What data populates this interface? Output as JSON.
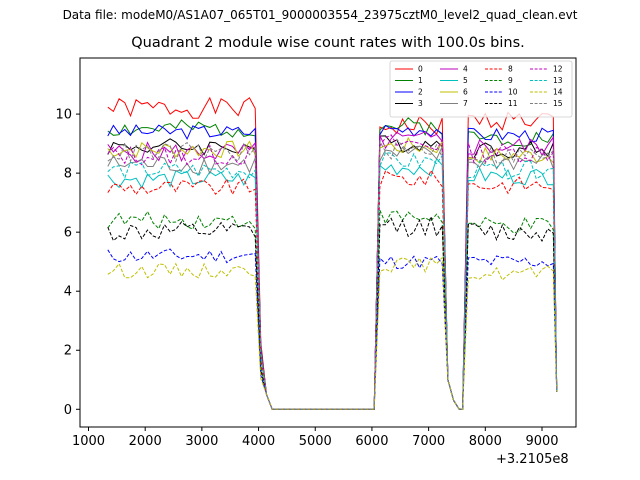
{
  "header": {
    "suptitle": "Data file: modeM0/AS1A07_065T01_9000003554_23975cztM0_level2_quad_clean.evt"
  },
  "chart_data": {
    "type": "line",
    "title": "Quadrant 2 module wise count rates with 100.0s bins.",
    "xlabel": "",
    "ylabel": "",
    "x_offset_label": "+3.2105e8",
    "xlim": [
      850,
      9600
    ],
    "ylim": [
      -0.6,
      11.9
    ],
    "x_ticks": [
      1000,
      2000,
      3000,
      4000,
      5000,
      6000,
      7000,
      8000,
      9000
    ],
    "y_ticks": [
      0,
      2,
      4,
      6,
      8,
      10
    ],
    "grid": false,
    "legend": {
      "placement": "top-right",
      "columns": 4
    },
    "segments": [
      {
        "x_start": 1340,
        "x_end": 3940,
        "step": 100
      },
      {
        "x_start": 6140,
        "x_end": 7240,
        "step": 100
      },
      {
        "x_start": 7700,
        "x_end": 9240,
        "step": 100
      }
    ],
    "gap_points": [
      [
        4040,
        2.0
      ],
      [
        4140,
        0.5
      ],
      [
        4240,
        0.0
      ],
      [
        6040,
        0.0
      ],
      [
        7340,
        1.0
      ],
      [
        7440,
        0.3
      ],
      [
        7540,
        0.0
      ],
      [
        7600,
        0.0
      ]
    ],
    "final_point": [
      9260,
      0.6
    ],
    "series": [
      {
        "name": "0",
        "color": "#ff0000",
        "dash": "solid",
        "levels": [
          10.2,
          9.6,
          9.8
        ],
        "noise": 0.35,
        "seed": 1
      },
      {
        "name": "1",
        "color": "#008000",
        "dash": "solid",
        "levels": [
          9.5,
          9.6,
          9.2
        ],
        "noise": 0.3,
        "seed": 2
      },
      {
        "name": "2",
        "color": "#0000ff",
        "dash": "solid",
        "levels": [
          9.4,
          9.5,
          9.3
        ],
        "noise": 0.25,
        "seed": 3
      },
      {
        "name": "3",
        "color": "#000000",
        "dash": "solid",
        "levels": [
          8.9,
          9.0,
          8.8
        ],
        "noise": 0.3,
        "seed": 4
      },
      {
        "name": "4",
        "color": "#bf00bf",
        "dash": "solid",
        "levels": [
          8.7,
          9.1,
          8.9
        ],
        "noise": 0.35,
        "seed": 5
      },
      {
        "name": "5",
        "color": "#00bfbf",
        "dash": "solid",
        "levels": [
          7.8,
          8.2,
          7.9
        ],
        "noise": 0.3,
        "seed": 6
      },
      {
        "name": "6",
        "color": "#bfbf00",
        "dash": "solid",
        "levels": [
          8.8,
          8.9,
          8.6
        ],
        "noise": 0.3,
        "seed": 7
      },
      {
        "name": "7",
        "color": "#808080",
        "dash": "solid",
        "levels": [
          8.3,
          8.6,
          8.4
        ],
        "noise": 0.35,
        "seed": 8
      },
      {
        "name": "8",
        "color": "#ff0000",
        "dash": "dashed",
        "levels": [
          7.5,
          7.8,
          7.6
        ],
        "noise": 0.3,
        "seed": 9
      },
      {
        "name": "9",
        "color": "#008000",
        "dash": "dashed",
        "levels": [
          6.4,
          6.5,
          6.2
        ],
        "noise": 0.3,
        "seed": 10
      },
      {
        "name": "10",
        "color": "#0000ff",
        "dash": "dashed",
        "levels": [
          5.2,
          5.0,
          5.0
        ],
        "noise": 0.25,
        "seed": 11
      },
      {
        "name": "11",
        "color": "#000000",
        "dash": "dashed",
        "levels": [
          6.0,
          6.2,
          6.0
        ],
        "noise": 0.35,
        "seed": 12
      },
      {
        "name": "12",
        "color": "#bf00bf",
        "dash": "dashed",
        "levels": [
          8.6,
          9.0,
          8.7
        ],
        "noise": 0.35,
        "seed": 13
      },
      {
        "name": "13",
        "color": "#00bfbf",
        "dash": "dashed",
        "levels": [
          8.1,
          8.4,
          8.1
        ],
        "noise": 0.3,
        "seed": 14
      },
      {
        "name": "14",
        "color": "#bfbf00",
        "dash": "dashed",
        "levels": [
          4.7,
          4.9,
          4.6
        ],
        "noise": 0.25,
        "seed": 15
      },
      {
        "name": "15",
        "color": "#808080",
        "dash": "dashed",
        "levels": [
          8.7,
          8.8,
          8.6
        ],
        "noise": 0.35,
        "seed": 16
      }
    ]
  }
}
